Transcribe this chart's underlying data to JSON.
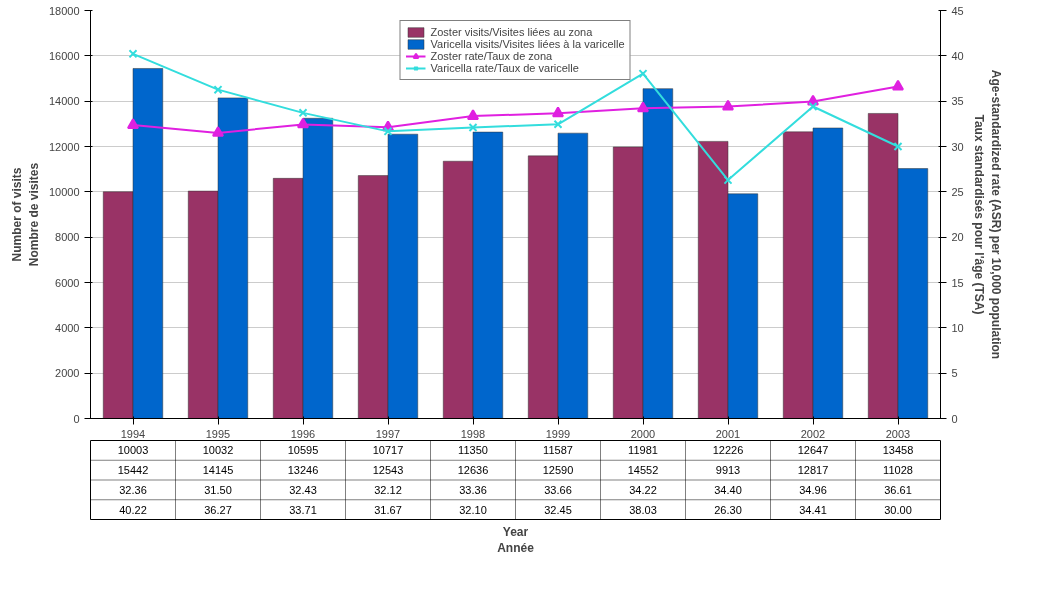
{
  "chart_data": {
    "type": "bar",
    "annotations": [
      "Year\nAnnée"
    ],
    "ylabel": "Number of visits\nNombre de visites",
    "y2label": "Age-standardized rate (ASR) per 10,000 population\nTaux standardisés pour l'âge (TSA)",
    "categories": [
      "1994",
      "1995",
      "1996",
      "1997",
      "1998",
      "1999",
      "2000",
      "2001",
      "2002",
      "2003"
    ],
    "series": [
      {
        "name": "Zoster visits/Visites liées au zona",
        "color": "#993366",
        "values": [
          10003,
          10032,
          10595,
          10717,
          11350,
          11587,
          11981,
          12226,
          12647,
          13458
        ],
        "value_labels": [
          "10003",
          "10032",
          "10595",
          "10717",
          "11350",
          "11587",
          "11981",
          "12226",
          "12647",
          "13458"
        ]
      },
      {
        "name": "Varicella visits/Visites liées à la varicelle",
        "color": "#0066cc",
        "values": [
          15442,
          14145,
          13246,
          12543,
          12636,
          12590,
          14552,
          9913,
          12817,
          11028
        ],
        "value_labels": [
          "15442",
          "14145",
          "13246",
          "12543",
          "12636",
          "12590",
          "14552",
          "9913",
          "12817",
          "11028"
        ]
      },
      {
        "name": "Zoster rate/Taux de zona",
        "type": "line",
        "axis": "y2",
        "marker": "triangle",
        "color": "#e020e0",
        "values": [
          32.36,
          31.5,
          32.43,
          32.12,
          33.36,
          33.66,
          34.22,
          34.4,
          34.96,
          36.61
        ],
        "value_labels": [
          "32.36",
          "31.50",
          "32.43",
          "32.12",
          "33.36",
          "33.66",
          "34.22",
          "34.40",
          "34.96",
          "36.61"
        ]
      },
      {
        "name": "Varicella rate/Taux de varicelle",
        "type": "line",
        "axis": "y2",
        "marker": "cross",
        "color": "#33dddd",
        "values": [
          40.22,
          36.27,
          33.71,
          31.67,
          32.1,
          32.45,
          38.03,
          26.3,
          34.41,
          30.0
        ],
        "value_labels": [
          "40.22",
          "36.27",
          "33.71",
          "31.67",
          "32.10",
          "32.45",
          "38.03",
          "26.30",
          "34.41",
          "30.00"
        ]
      }
    ],
    "ylim": [
      0,
      18000
    ],
    "yticks": [
      0,
      2000,
      4000,
      6000,
      8000,
      10000,
      12000,
      14000,
      16000,
      18000
    ],
    "y2lim": [
      0,
      45
    ],
    "y2ticks": [
      0,
      5,
      10,
      15,
      20,
      25,
      30,
      35,
      40,
      45
    ],
    "grid": "y",
    "legend": "top"
  }
}
